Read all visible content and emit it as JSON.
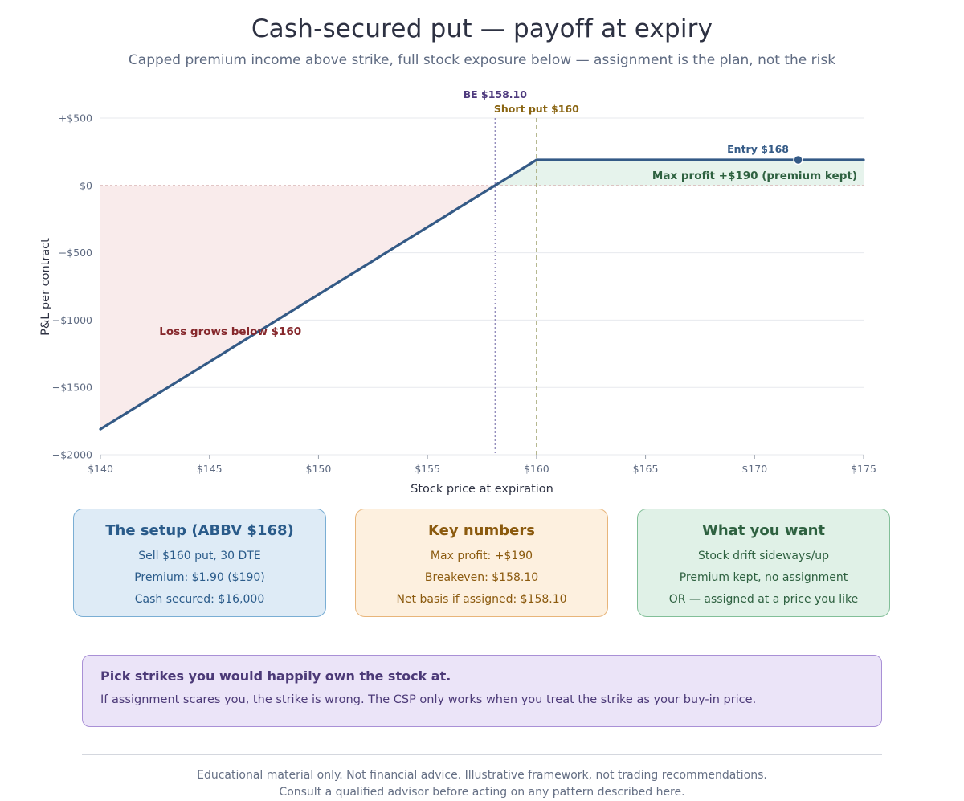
{
  "header": {
    "title": "Cash-secured put — payoff at expiry",
    "subtitle": "Capped premium income above strike, full stock exposure below — assignment is the plan, not the risk"
  },
  "chart_data": {
    "type": "line",
    "xlabel": "Stock price at expiration",
    "ylabel": "P&L per contract",
    "xlim": [
      140,
      175
    ],
    "ylim": [
      -2000,
      500
    ],
    "x_ticks": [
      140,
      145,
      150,
      155,
      160,
      165,
      170,
      175
    ],
    "x_tick_labels": [
      "$140",
      "$145",
      "$150",
      "$155",
      "$160",
      "$165",
      "$170",
      "$175"
    ],
    "y_ticks": [
      500,
      0,
      -500,
      -1000,
      -1500,
      -2000
    ],
    "y_tick_labels": [
      "+$500",
      "$0",
      "−$500",
      "−$1000",
      "−$1500",
      "−$2000"
    ],
    "grid": true,
    "series": [
      {
        "values": [
          [
            140,
            -1810
          ],
          [
            160,
            190
          ],
          [
            175,
            190
          ]
        ]
      }
    ],
    "markers": [
      {
        "label": "Entry $168",
        "x": 172,
        "y": 190
      }
    ],
    "vlines": [
      {
        "label": "BE $158.10",
        "x": 158.1,
        "style": "dotted"
      },
      {
        "label": "Short put $160",
        "x": 160,
        "style": "dashed"
      }
    ],
    "annotations": [
      {
        "text": "Max profit +$190 (premium kept)",
        "x": 175,
        "y": 75
      },
      {
        "text": "Loss grows below $160",
        "x": 142.7,
        "y": -1080
      }
    ],
    "colors": {
      "line": "#345a86",
      "profit_fill": "#e6f3ec",
      "loss_fill": "#f9ebeb",
      "breakeven": "#8d86b8",
      "strike": "#a8ab7c",
      "be_label": "#4e3a7e",
      "strike_label": "#8a6512",
      "entry_label": "#345a86",
      "profit_label": "#2e6140",
      "loss_label": "#86282c"
    }
  },
  "cards": {
    "setup": {
      "title": "The setup (ABBV $168)",
      "lines": [
        "Sell $160 put, 30 DTE",
        "Premium: $1.90 ($190)",
        "Cash secured: $16,000"
      ]
    },
    "numbers": {
      "title": "Key numbers",
      "lines": [
        "Max profit: +$190",
        "Breakeven: $158.10",
        "Net basis if assigned: $158.10"
      ]
    },
    "want": {
      "title": "What you want",
      "lines": [
        "Stock drift sideways/up",
        "Premium kept, no assignment",
        "OR — assigned at a price you like"
      ]
    }
  },
  "callout": {
    "head": "Pick strikes you would happily own the stock at.",
    "body": "If assignment scares you, the strike is wrong. The CSP only works when you treat the strike as your buy-in price."
  },
  "footer": {
    "line1": "Educational material only. Not financial advice. Illustrative framework, not trading recommendations.",
    "line2": "Consult a qualified advisor before acting on any pattern described here."
  }
}
